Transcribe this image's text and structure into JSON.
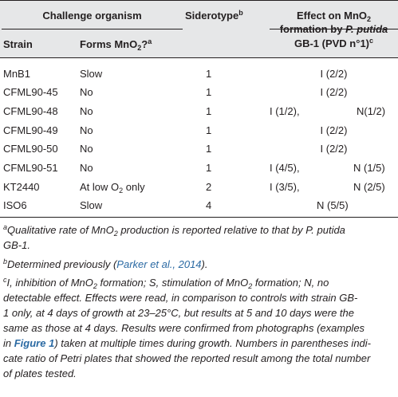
{
  "header": {
    "challenge_organism": "Challenge organism",
    "strain": "Strain",
    "forms_pre": "Forms MnO",
    "forms_sub": "2",
    "forms_post": "?",
    "forms_sup": "a",
    "siderotype": "Siderotype",
    "siderotype_sup": "b",
    "effect_line1": "Effect on MnO",
    "effect_sub": "2",
    "effect_line2_pre": "formation by ",
    "effect_line2_ital": "P. putida",
    "effect_line3": "GB-1 (PVD n°1)",
    "effect_sup": "c"
  },
  "rows": [
    {
      "strain": "MnB1",
      "forms": "Slow",
      "siderotype": "1",
      "eff_left": "",
      "eff_center": "I (2/2)",
      "eff_right": ""
    },
    {
      "strain": "CFML90-45",
      "forms": "No",
      "siderotype": "1",
      "eff_left": "",
      "eff_center": "I (2/2)",
      "eff_right": ""
    },
    {
      "strain": "CFML90-48",
      "forms": "No",
      "siderotype": "1",
      "eff_left": "I (1/2),",
      "eff_center": "",
      "eff_right": "N(1/2)"
    },
    {
      "strain": "CFML90-49",
      "forms": "No",
      "siderotype": "1",
      "eff_left": "",
      "eff_center": "I (2/2)",
      "eff_right": ""
    },
    {
      "strain": "CFML90-50",
      "forms": "No",
      "siderotype": "1",
      "eff_left": "",
      "eff_center": "I (2/2)",
      "eff_right": ""
    },
    {
      "strain": "CFML90-51",
      "forms": "No",
      "siderotype": "1",
      "eff_left": "I (4/5),",
      "eff_center": "",
      "eff_right": "N (1/5)"
    },
    {
      "strain": "KT2440",
      "forms": "At low O",
      "forms_sub": "2",
      "forms_post": " only",
      "siderotype": "2",
      "eff_left": "I (3/5),",
      "eff_center": "",
      "eff_right": "N (2/5)"
    },
    {
      "strain": "ISO6",
      "forms": "Slow",
      "siderotype": "4",
      "eff_left": "",
      "eff_center": "N (5/5)",
      "eff_right": ""
    }
  ],
  "footnotes": {
    "a_mark": "a",
    "a_l1_pre": "Qualitative rate of MnO",
    "a_l1_sub": "2",
    "a_l1_post": " production is reported relative to that by P. putida",
    "a_l2": "GB-1.",
    "b_mark": "b",
    "b_pre": "Determined previously (",
    "b_link": "Parker et al., 2014",
    "b_post": ").",
    "c_mark": "c",
    "c_l1_a": "I, inhibition of MnO",
    "c_l1_b": " formation; S, stimulation of MnO",
    "c_l1_c": " formation; N, no",
    "c_sub": "2",
    "c_l2": "detectable effect. Effects were read, in comparison to controls with strain GB-",
    "c_l3": "1 only, at 4 days of growth at 23–25°C, but results at 5 and 10 days were the",
    "c_l4": "same as those at 4 days. Results were confirmed from photographs (examples",
    "c_l5_pre": "in ",
    "c_l5_fig": "Figure 1",
    "c_l5_post": ") taken at multiple times during growth. Numbers in parentheses indi-",
    "c_l6": "cate ratio of Petri plates that showed the reported result among the total number",
    "c_l7": "of plates tested."
  }
}
